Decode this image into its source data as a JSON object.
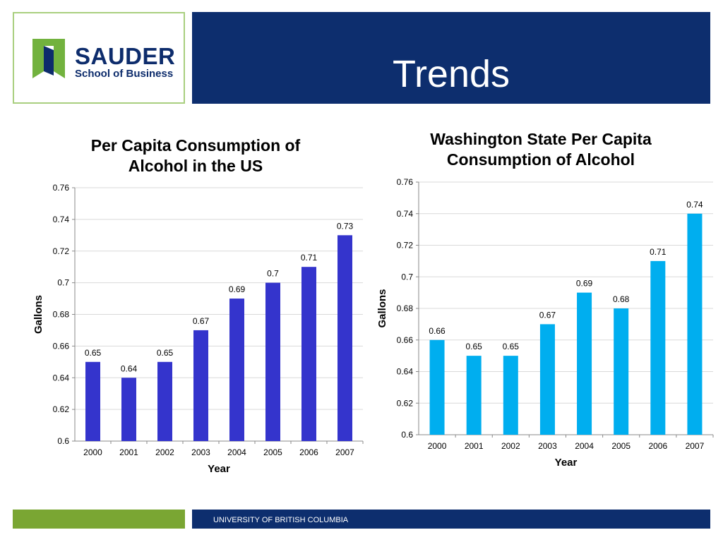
{
  "header": {
    "title": "Trends",
    "logo_word": "SAUDER",
    "logo_sub": "School of Business"
  },
  "footer": {
    "text": "UNIVERSITY OF BRITISH COLUMBIA"
  },
  "colors": {
    "us_bar": "#3434cc",
    "wa_bar": "#00aeef",
    "header_blue": "#0d2e6e",
    "footer_green": "#7aa633",
    "logo_green": "#72b23e",
    "logo_navy": "#0d2c6c"
  },
  "chart_data": [
    {
      "type": "bar",
      "title": "Per Capita Consumption of Alcohol in the US",
      "title_lines": [
        "Per Capita Consumption of",
        "Alcohol in the US"
      ],
      "xlabel": "Year",
      "ylabel": "Gallons",
      "categories": [
        "2000",
        "2001",
        "2002",
        "2003",
        "2004",
        "2005",
        "2006",
        "2007"
      ],
      "values": [
        0.65,
        0.64,
        0.65,
        0.67,
        0.69,
        0.7,
        0.71,
        0.73
      ],
      "data_labels": [
        "0.65",
        "0.64",
        "0.65",
        "0.67",
        "0.69",
        "0.7",
        "0.71",
        "0.73"
      ],
      "ylim": [
        0.6,
        0.76
      ],
      "yticks": [
        "0.6",
        "0.62",
        "0.64",
        "0.66",
        "0.68",
        "0.7",
        "0.72",
        "0.74",
        "0.76"
      ],
      "grid": true,
      "color": "#3434cc"
    },
    {
      "type": "bar",
      "title": "Washington State Per Capita Consumption of Alcohol",
      "title_lines": [
        "Washington State Per Capita",
        "Consumption of Alcohol"
      ],
      "xlabel": "Year",
      "ylabel": "Gallons",
      "categories": [
        "2000",
        "2001",
        "2002",
        "2003",
        "2004",
        "2005",
        "2006",
        "2007"
      ],
      "values": [
        0.66,
        0.65,
        0.65,
        0.67,
        0.69,
        0.68,
        0.71,
        0.74
      ],
      "data_labels": [
        "0.66",
        "0.65",
        "0.65",
        "0.67",
        "0.69",
        "0.68",
        "0.71",
        "0.74"
      ],
      "ylim": [
        0.6,
        0.76
      ],
      "yticks": [
        "0.6",
        "0.62",
        "0.64",
        "0.66",
        "0.68",
        "0.7",
        "0.72",
        "0.74",
        "0.76"
      ],
      "grid": true,
      "color": "#00aeef"
    }
  ]
}
